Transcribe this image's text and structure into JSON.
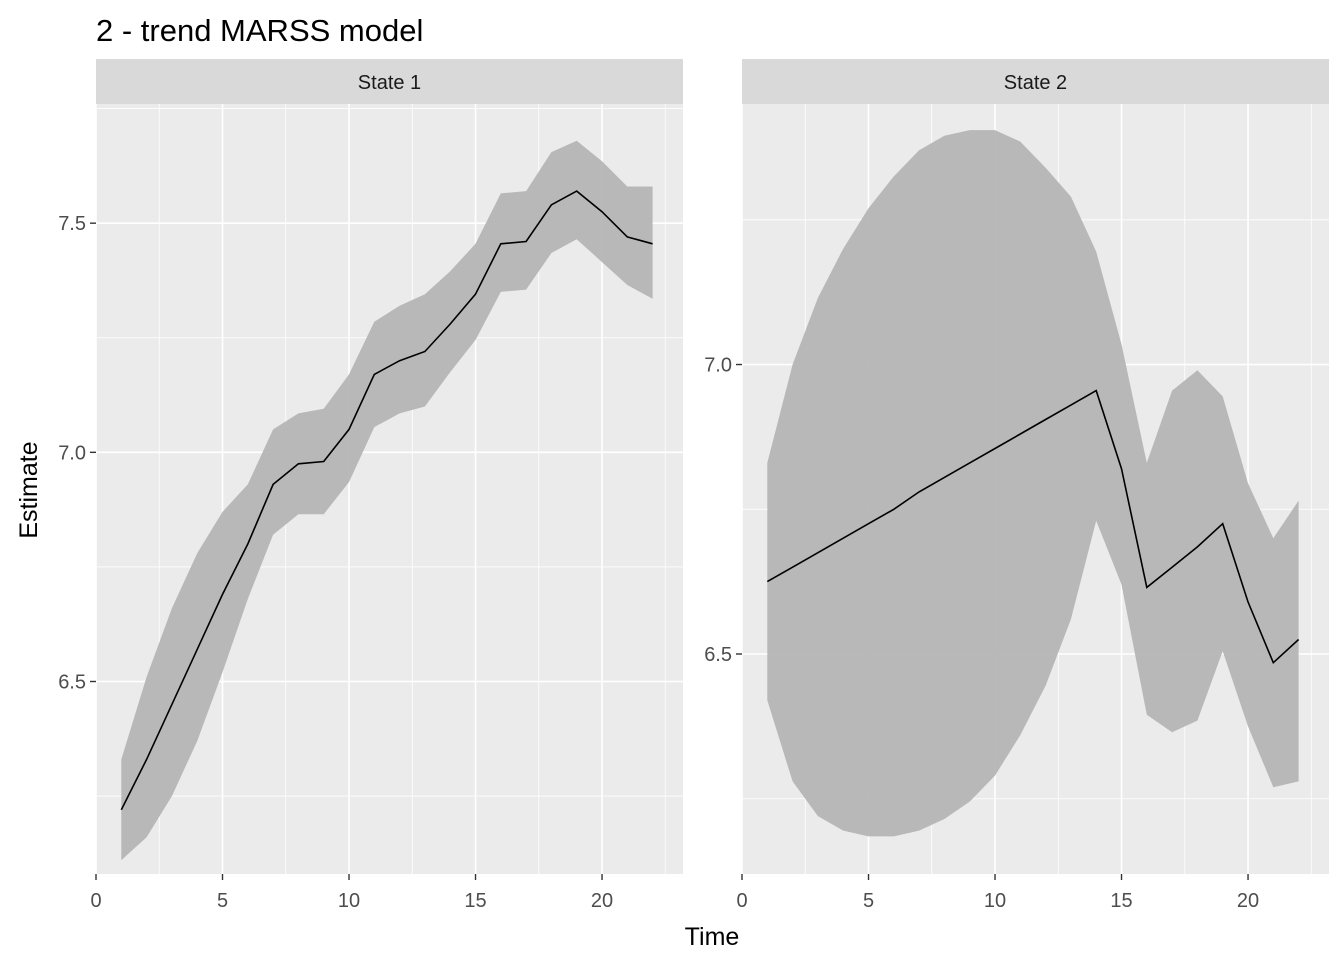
{
  "chart_data": {
    "type": "area",
    "title": "2 - trend MARSS model",
    "xlabel": "Time",
    "ylabel": "Estimate",
    "grid": true,
    "colors": {
      "panel_bg": "#ebebeb",
      "strip_bg": "#d9d9d9",
      "grid_major": "#ffffff",
      "ribbon": "#b3b3b3",
      "line": "#000000"
    },
    "panels": [
      {
        "strip": "State 1",
        "xlim": [
          0,
          23.2
        ],
        "ylim": [
          6.08,
          7.76
        ],
        "xticks": [
          0,
          5,
          10,
          15,
          20
        ],
        "xtick_labels": [
          "0",
          "5",
          "10",
          "15",
          "20"
        ],
        "yticks": [
          6.5,
          7.0,
          7.5
        ],
        "ytick_labels": [
          "6.5",
          "7.0",
          "7.5"
        ],
        "x": [
          1,
          2,
          3,
          4,
          5,
          6,
          7,
          8,
          9,
          10,
          11,
          12,
          13,
          14,
          15,
          16,
          17,
          18,
          19,
          20,
          21,
          22
        ],
        "estimate": [
          6.22,
          6.33,
          6.45,
          6.57,
          6.69,
          6.8,
          6.93,
          6.975,
          6.98,
          7.05,
          7.17,
          7.2,
          7.22,
          7.28,
          7.345,
          7.455,
          7.46,
          7.54,
          7.57,
          7.525,
          7.47,
          7.455
        ],
        "lower": [
          6.11,
          6.16,
          6.25,
          6.37,
          6.52,
          6.68,
          6.82,
          6.865,
          6.865,
          6.935,
          7.055,
          7.085,
          7.1,
          7.175,
          7.245,
          7.35,
          7.355,
          7.435,
          7.465,
          7.415,
          7.365,
          7.335
        ],
        "upper": [
          6.33,
          6.51,
          6.66,
          6.78,
          6.87,
          6.93,
          7.05,
          7.085,
          7.095,
          7.17,
          7.285,
          7.32,
          7.345,
          7.395,
          7.455,
          7.565,
          7.57,
          7.655,
          7.68,
          7.635,
          7.58,
          7.58
        ]
      },
      {
        "strip": "State 2",
        "xlim": [
          0,
          23.2
        ],
        "ylim": [
          6.12,
          7.45
        ],
        "xticks": [
          0,
          5,
          10,
          15,
          20
        ],
        "xtick_labels": [
          "0",
          "5",
          "10",
          "15",
          "20"
        ],
        "yticks": [
          6.5,
          7.0
        ],
        "ytick_labels": [
          "6.5",
          "7.0"
        ],
        "x": [
          1,
          2,
          3,
          4,
          5,
          6,
          7,
          8,
          9,
          10,
          11,
          12,
          13,
          14,
          15,
          16,
          17,
          18,
          19,
          20,
          21,
          22
        ],
        "estimate": [
          6.625,
          6.65,
          6.675,
          6.7,
          6.725,
          6.75,
          6.78,
          6.805,
          6.83,
          6.855,
          6.88,
          6.905,
          6.93,
          6.955,
          6.82,
          6.615,
          6.65,
          6.685,
          6.725,
          6.59,
          6.485,
          6.525
        ],
        "lower": [
          6.42,
          6.28,
          6.22,
          6.195,
          6.185,
          6.185,
          6.195,
          6.215,
          6.245,
          6.29,
          6.36,
          6.445,
          6.56,
          6.73,
          6.62,
          6.395,
          6.365,
          6.385,
          6.505,
          6.375,
          6.27,
          6.28
        ],
        "upper": [
          6.83,
          7.0,
          7.115,
          7.2,
          7.27,
          7.325,
          7.37,
          7.395,
          7.405,
          7.405,
          7.385,
          7.34,
          7.29,
          7.195,
          7.035,
          6.83,
          6.955,
          6.99,
          6.945,
          6.795,
          6.7,
          6.765
        ]
      }
    ]
  }
}
